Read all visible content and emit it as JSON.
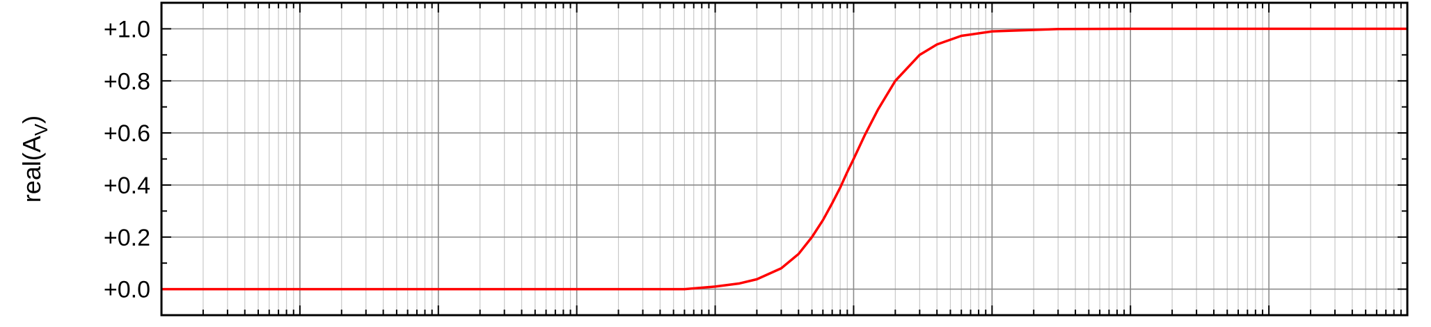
{
  "chart_data": {
    "type": "line",
    "title": "",
    "xlabel": "",
    "ylabel": "real(A",
    "ylabel_subscript": "V",
    "ylabel_suffix": ")",
    "x_scale": "log",
    "xlim": [
      0.01,
      10000000
    ],
    "ylim": [
      -0.1,
      1.1
    ],
    "y_ticks": [
      0.0,
      0.2,
      0.4,
      0.6,
      0.8,
      1.0
    ],
    "y_tick_labels": [
      "+0.0",
      "+0.2",
      "+0.4",
      "+0.6",
      "+0.8",
      "+1.0"
    ],
    "grid": true,
    "series": [
      {
        "color": "#ff0000",
        "x": [
          0.01,
          1,
          10,
          30,
          60,
          100,
          150,
          200,
          300,
          400,
          500,
          600,
          700,
          800,
          900,
          1000,
          1200,
          1500,
          2000,
          3000,
          4000,
          6000,
          10000,
          30000,
          100000,
          1000000,
          10000000
        ],
        "y": [
          0.0,
          0.0,
          0.0,
          0.0,
          0.0,
          0.01,
          0.022,
          0.038,
          0.08,
          0.135,
          0.2,
          0.265,
          0.33,
          0.39,
          0.45,
          0.5,
          0.59,
          0.69,
          0.8,
          0.9,
          0.94,
          0.973,
          0.99,
          0.999,
          1.0,
          1.0,
          1.0
        ]
      }
    ]
  }
}
